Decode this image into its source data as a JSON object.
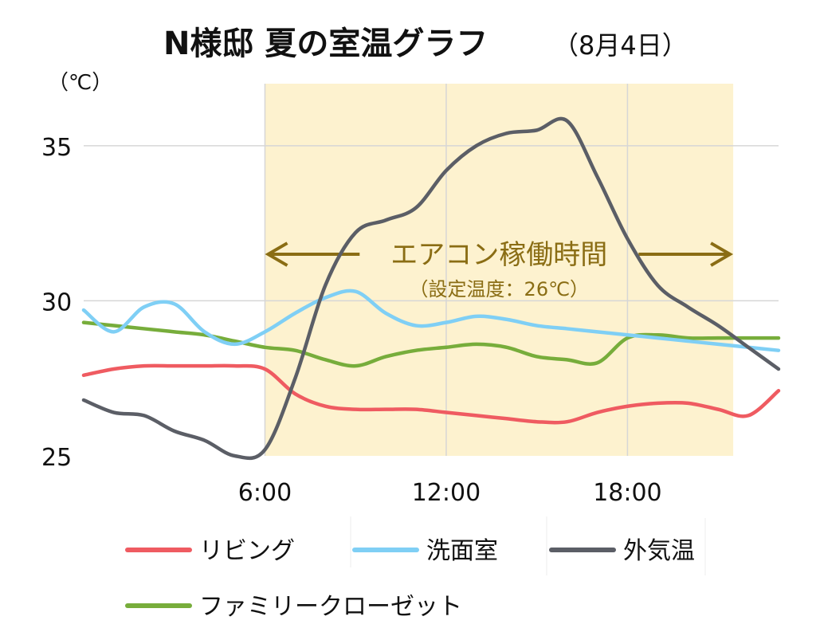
{
  "chart_data": {
    "type": "line",
    "title": "N様邸 夏の室温グラフ",
    "subtitle": "（8月4日）",
    "ylabel": "（℃）",
    "xlim": [
      0,
      23
    ],
    "ylim": [
      25,
      37
    ],
    "x_ticks": [
      {
        "value": 6,
        "label": "6:00"
      },
      {
        "value": 12,
        "label": "12:00"
      },
      {
        "value": 18,
        "label": "18:00"
      }
    ],
    "y_ticks": [
      {
        "value": 25,
        "label": "25"
      },
      {
        "value": 30,
        "label": "30"
      },
      {
        "value": 35,
        "label": "35"
      }
    ],
    "grid": true,
    "highlight": {
      "x_start": 6,
      "x_end": 21.5,
      "color": "#fdf2cf",
      "label": "エアコン稼働時間",
      "sublabel": "（設定温度：26℃）"
    },
    "legend_position": "bottom",
    "series": [
      {
        "name": "リビング",
        "color": "#ef5b61",
        "x": [
          0,
          1,
          2,
          3,
          4,
          5,
          6,
          7,
          8,
          9,
          10,
          11,
          12,
          13,
          14,
          15,
          16,
          17,
          18,
          19,
          20,
          21,
          22,
          23
        ],
        "values": [
          27.6,
          27.8,
          27.9,
          27.9,
          27.9,
          27.9,
          27.8,
          27.0,
          26.6,
          26.5,
          26.5,
          26.5,
          26.4,
          26.3,
          26.2,
          26.1,
          26.1,
          26.4,
          26.6,
          26.7,
          26.7,
          26.5,
          26.3,
          27.1
        ]
      },
      {
        "name": "洗面室",
        "color": "#7fcff5",
        "x": [
          0,
          1,
          2,
          3,
          4,
          5,
          6,
          7,
          8,
          9,
          10,
          11,
          12,
          13,
          14,
          15,
          16,
          17,
          18,
          19,
          20,
          21,
          22,
          23
        ],
        "values": [
          29.7,
          29.0,
          29.8,
          29.9,
          29.0,
          28.6,
          29.0,
          29.6,
          30.1,
          30.3,
          29.6,
          29.2,
          29.3,
          29.5,
          29.4,
          29.2,
          29.1,
          29.0,
          28.9,
          28.8,
          28.7,
          28.6,
          28.5,
          28.4
        ]
      },
      {
        "name": "外気温",
        "color": "#5b5e66",
        "x": [
          0,
          1,
          2,
          3,
          4,
          5,
          6,
          7,
          8,
          9,
          10,
          11,
          12,
          13,
          14,
          15,
          16,
          17,
          18,
          19,
          20,
          21,
          22,
          23
        ],
        "values": [
          26.8,
          26.4,
          26.3,
          25.8,
          25.5,
          25.0,
          25.2,
          27.5,
          30.5,
          32.2,
          32.6,
          33.0,
          34.2,
          35.0,
          35.4,
          35.5,
          35.8,
          34.0,
          32.0,
          30.5,
          29.8,
          29.2,
          28.5,
          27.8
        ]
      },
      {
        "name": "ファミリークローゼット",
        "color": "#77ad3b",
        "x": [
          0,
          1,
          2,
          3,
          4,
          5,
          6,
          7,
          8,
          9,
          10,
          11,
          12,
          13,
          14,
          15,
          16,
          17,
          18,
          19,
          20,
          21,
          22,
          23
        ],
        "values": [
          29.3,
          29.2,
          29.1,
          29.0,
          28.9,
          28.7,
          28.5,
          28.4,
          28.1,
          27.9,
          28.2,
          28.4,
          28.5,
          28.6,
          28.5,
          28.2,
          28.1,
          28.0,
          28.8,
          28.9,
          28.8,
          28.8,
          28.8,
          28.8
        ]
      }
    ]
  }
}
